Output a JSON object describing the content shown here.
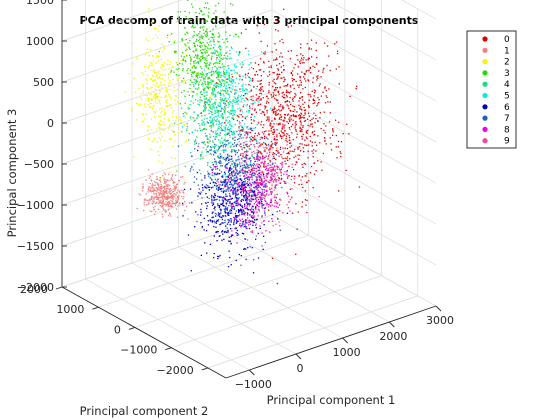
{
  "chart_data": {
    "type": "scatter",
    "title": "PCA decomp of train data with 3 principal components",
    "xlabel": "Principal component 1",
    "ylabel": "Principal component 2",
    "zlabel": "Principal component 3",
    "xlim": [
      -1500,
      3000
    ],
    "ylim": [
      -2500,
      2000
    ],
    "zlim": [
      -2000,
      1500
    ],
    "x_ticks": [
      -1000,
      0,
      1000,
      2000,
      3000
    ],
    "x_tick_labels": [
      "−1000",
      "0",
      "1000",
      "2000",
      "3000"
    ],
    "y_ticks": [
      -2000,
      -1000,
      0,
      1000,
      2000
    ],
    "y_tick_labels": [
      "−2000",
      "−1000",
      "0",
      "1000",
      "2000"
    ],
    "z_ticks": [
      -2000,
      -1500,
      -1000,
      -500,
      0,
      500,
      1000,
      1500
    ],
    "z_tick_labels": [
      "−2000",
      "−1500",
      "−1000",
      "−500",
      "0",
      "500",
      "1000",
      "1500"
    ],
    "grid": true,
    "legend_position": "top-right",
    "series": [
      {
        "name": "0",
        "color": "#e00000",
        "center": [
          1500,
          -300,
          100
        ],
        "spread": [
          450,
          450,
          420
        ],
        "count": 900
      },
      {
        "name": "1",
        "color": "#f08080",
        "center": [
          -500,
          500,
          -700
        ],
        "spread": [
          150,
          180,
          100
        ],
        "count": 400
      },
      {
        "name": "2",
        "color": "#f5f500",
        "center": [
          -100,
          1100,
          300
        ],
        "spread": [
          200,
          250,
          350
        ],
        "count": 350
      },
      {
        "name": "3",
        "color": "#22dd00",
        "center": [
          700,
          900,
          600
        ],
        "spread": [
          250,
          250,
          350
        ],
        "count": 500
      },
      {
        "name": "4",
        "color": "#10e080",
        "center": [
          500,
          300,
          0
        ],
        "spread": [
          250,
          250,
          300
        ],
        "count": 350
      },
      {
        "name": "5",
        "color": "#00f0e0",
        "center": [
          700,
          300,
          300
        ],
        "spread": [
          250,
          250,
          300
        ],
        "count": 350
      },
      {
        "name": "6",
        "color": "#0000cc",
        "center": [
          400,
          -200,
          -800
        ],
        "spread": [
          300,
          300,
          250
        ],
        "count": 500
      },
      {
        "name": "7",
        "color": "#2060c0",
        "center": [
          600,
          -100,
          -500
        ],
        "spread": [
          300,
          300,
          300
        ],
        "count": 450
      },
      {
        "name": "8",
        "color": "#ee00ee",
        "center": [
          800,
          -300,
          -700
        ],
        "spread": [
          280,
          250,
          250
        ],
        "count": 350
      },
      {
        "name": "9",
        "color": "#ff4090",
        "center": [
          900,
          -400,
          -500
        ],
        "spread": [
          250,
          250,
          280
        ],
        "count": 300
      }
    ]
  }
}
